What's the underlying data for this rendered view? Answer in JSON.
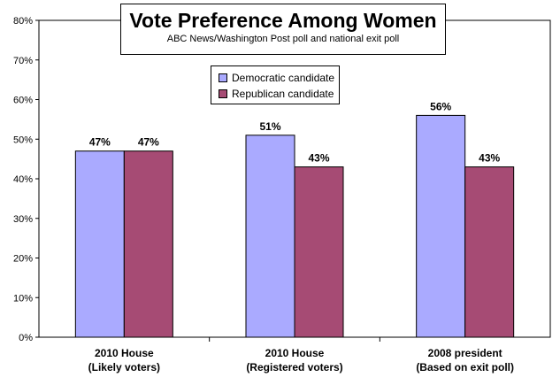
{
  "chart_data": {
    "type": "bar",
    "title": "Vote Preference Among Women",
    "subtitle": "ABC News/Washington Post poll and national exit poll",
    "categories": [
      [
        "2010 House",
        "(Likely voters)"
      ],
      [
        "2010 House",
        "(Registered voters)"
      ],
      [
        "2008 president",
        "(Based on exit poll)"
      ]
    ],
    "series": [
      {
        "name": "Democratic candidate",
        "color": "#aaaaff",
        "values": [
          47,
          51,
          56
        ]
      },
      {
        "name": "Republican candidate",
        "color": "#a64b74",
        "values": [
          47,
          43,
          43
        ]
      }
    ],
    "data_labels": [
      [
        "47%",
        "51%",
        "56%"
      ],
      [
        "47%",
        "43%",
        "43%"
      ]
    ],
    "yticks": [
      "0%",
      "10%",
      "20%",
      "30%",
      "40%",
      "50%",
      "60%",
      "70%",
      "80%"
    ],
    "ylim": [
      0,
      80
    ],
    "grid": false,
    "legend_position": "top-center"
  }
}
